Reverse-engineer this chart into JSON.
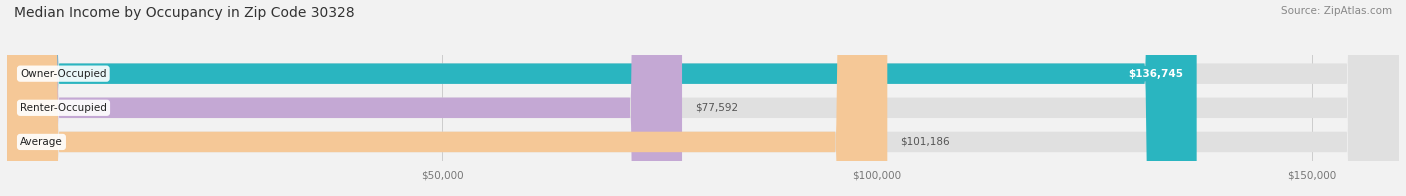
{
  "title": "Median Income by Occupancy in Zip Code 30328",
  "source": "Source: ZipAtlas.com",
  "categories": [
    "Owner-Occupied",
    "Renter-Occupied",
    "Average"
  ],
  "values": [
    136745,
    77592,
    101186
  ],
  "bar_colors": [
    "#2ab5c0",
    "#c4a8d4",
    "#f5c897"
  ],
  "label_colors": [
    "#ffffff",
    "#555555",
    "#555555"
  ],
  "label_inside": [
    true,
    false,
    false
  ],
  "xlim": [
    0,
    160000
  ],
  "xticks": [
    50000,
    100000,
    150000
  ],
  "xtick_labels": [
    "$50,000",
    "$100,000",
    "$150,000"
  ],
  "background_color": "#f2f2f2",
  "bar_bg_color": "#e0e0e0",
  "title_fontsize": 10,
  "source_fontsize": 7.5,
  "label_fontsize": 7.5,
  "tick_fontsize": 7.5
}
